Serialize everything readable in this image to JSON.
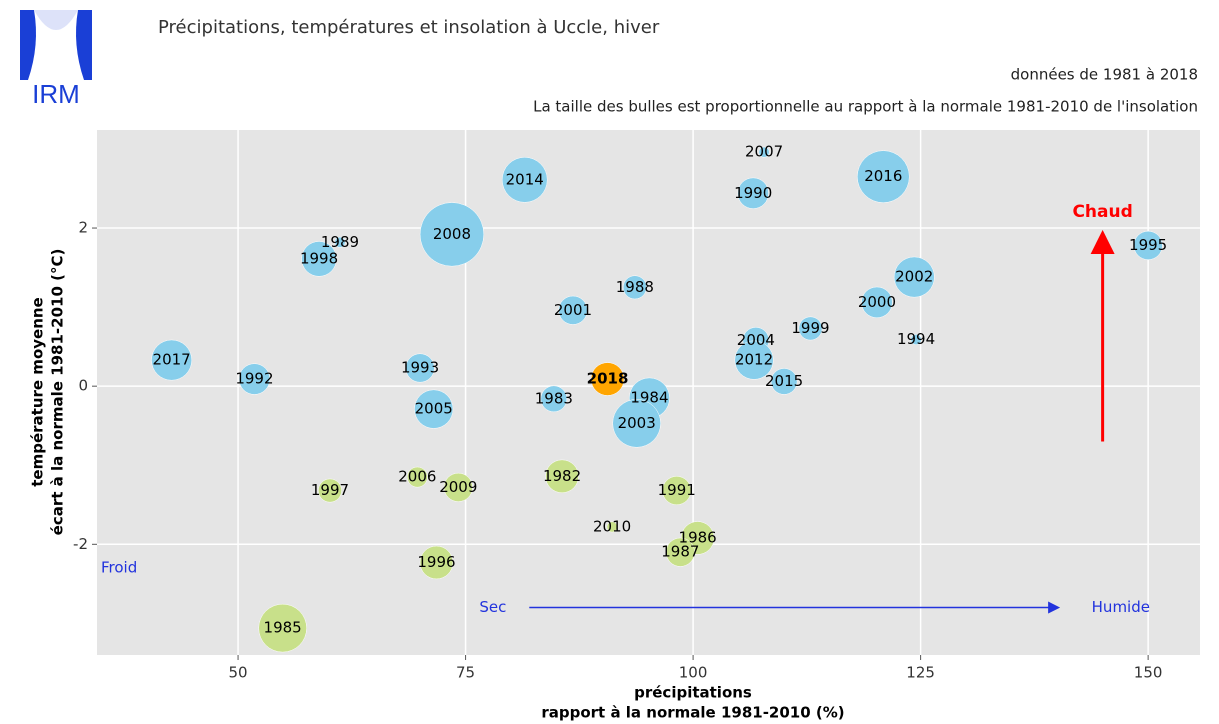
{
  "logo": "IRM",
  "chart_data": {
    "type": "bubble",
    "title": "Précipitations, températures et insolation à Uccle, hiver",
    "subtitle": "données de 1981 à 2018",
    "note": "La taille des bulles est proportionnelle au rapport à la normale 1981-2010 de l'insolation",
    "x_label": [
      "précipitations",
      "rapport à la normale 1981-2010 (%)"
    ],
    "y_label": [
      "température moyenne",
      "écart à la normale 1981-2010 (°C)"
    ],
    "xlim": [
      34.5,
      155.7
    ],
    "ylim": [
      -3.4,
      3.24
    ],
    "xticks": [
      50,
      75,
      100,
      125,
      150
    ],
    "yticks": [
      -2,
      0,
      2
    ],
    "grid": true,
    "labels": [
      "2017",
      "1992",
      "1998",
      "1989",
      "2008",
      "2014",
      "1993",
      "2005",
      "2001",
      "1988",
      "1983",
      "2018",
      "1984",
      "2003",
      "2007",
      "1990",
      "2016",
      "2004",
      "2012",
      "1999",
      "2015",
      "2000",
      "2002",
      "1994",
      "1995",
      "1997",
      "2006",
      "2009",
      "1982",
      "1991",
      "2010",
      "1986",
      "1987",
      "1996",
      "1985"
    ],
    "x": [
      42.7,
      51.8,
      58.9,
      61.2,
      73.5,
      81.5,
      70.0,
      71.5,
      86.8,
      93.6,
      84.7,
      90.6,
      95.2,
      93.8,
      107.8,
      106.6,
      120.9,
      106.9,
      106.7,
      112.9,
      110.0,
      120.2,
      124.3,
      124.5,
      150.0,
      60.1,
      69.7,
      74.2,
      85.6,
      98.2,
      91.1,
      100.5,
      98.6,
      71.8,
      54.9
    ],
    "y": [
      0.33,
      0.09,
      1.61,
      1.82,
      1.92,
      2.61,
      0.23,
      -0.29,
      0.96,
      1.25,
      -0.16,
      0.09,
      -0.15,
      -0.47,
      2.96,
      2.44,
      2.65,
      0.58,
      0.33,
      0.73,
      0.06,
      1.06,
      1.38,
      0.59,
      1.78,
      -1.32,
      -1.15,
      -1.28,
      -1.14,
      -1.32,
      -1.78,
      -1.92,
      -2.1,
      -2.23,
      -3.06
    ],
    "sizes": [
      60,
      35,
      45,
      4,
      150,
      75,
      30,
      55,
      30,
      20,
      25,
      40,
      60,
      85,
      4,
      35,
      100,
      25,
      55,
      20,
      25,
      35,
      60,
      4,
      30,
      20,
      15,
      30,
      40,
      30,
      4,
      40,
      30,
      40,
      85
    ],
    "colors": [
      "#87ceeb",
      "#87ceeb",
      "#87ceeb",
      "#87ceeb",
      "#87ceeb",
      "#87ceeb",
      "#87ceeb",
      "#87ceeb",
      "#87ceeb",
      "#87ceeb",
      "#87ceeb",
      "#ffa500",
      "#87ceeb",
      "#87ceeb",
      "#87ceeb",
      "#87ceeb",
      "#87ceeb",
      "#87ceeb",
      "#87ceeb",
      "#87ceeb",
      "#87ceeb",
      "#87ceeb",
      "#87ceeb",
      "#87ceeb",
      "#87ceeb",
      "#c8e08a",
      "#c8e08a",
      "#c8e08a",
      "#c8e08a",
      "#c8e08a",
      "#c8e08a",
      "#c8e08a",
      "#c8e08a",
      "#c8e08a",
      "#c8e08a"
    ],
    "label_colors": [
      "#000000",
      "#000000",
      "#000000",
      "#000000",
      "#000000",
      "#000000",
      "#000000",
      "#000000",
      "#000000",
      "#000000",
      "#000000",
      "#ff0000",
      "#000000",
      "#000000",
      "#000000",
      "#000000",
      "#000000",
      "#000000",
      "#000000",
      "#000000",
      "#000000",
      "#000000",
      "#000000",
      "#000000",
      "#000000",
      "#000000",
      "#000000",
      "#000000",
      "#000000",
      "#000000",
      "#000000",
      "#000000",
      "#000000",
      "#000000",
      "#000000"
    ],
    "annotations": [
      "Chaud",
      "Froid",
      "Sec",
      "Humide"
    ]
  }
}
